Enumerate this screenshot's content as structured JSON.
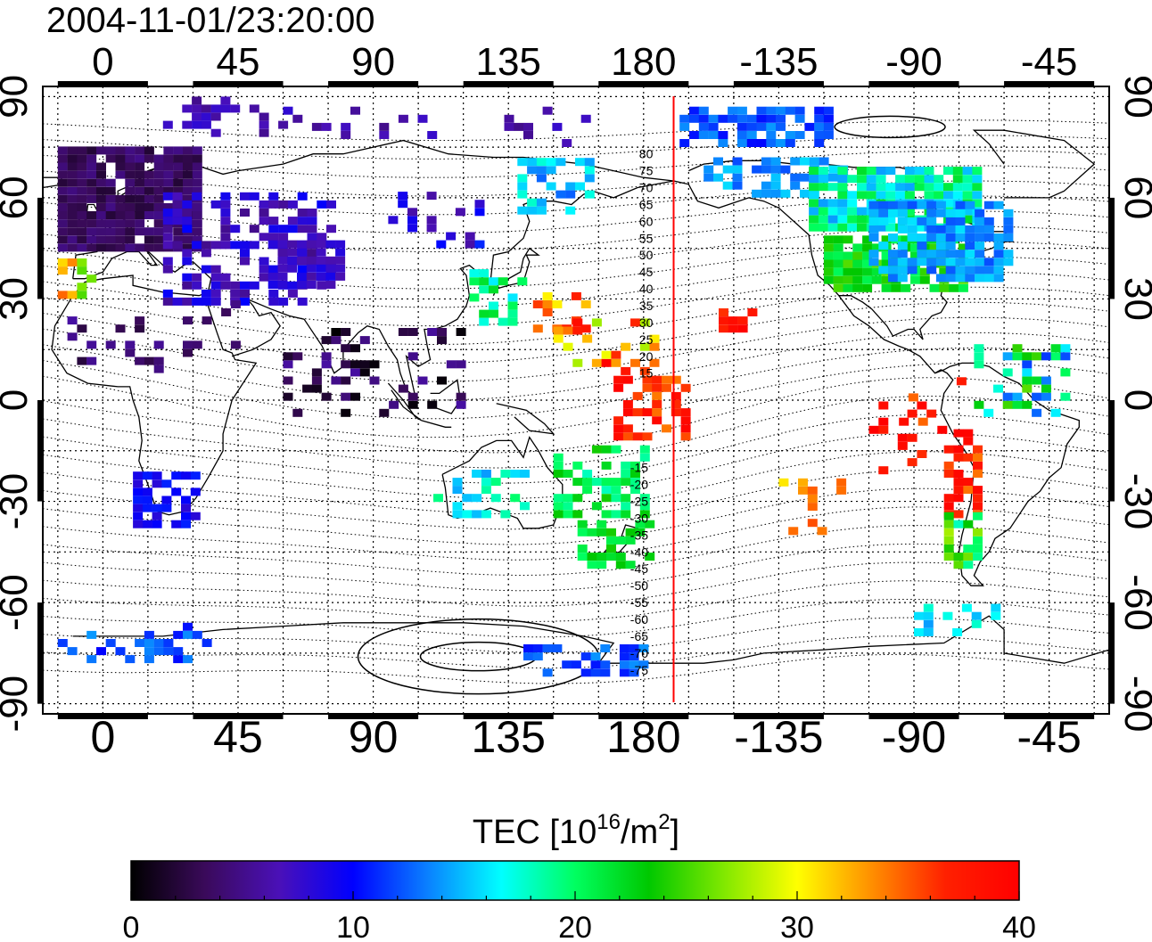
{
  "timestamp": "2004-11-01/23:20:00",
  "map": {
    "top_lon_labels": [
      "0",
      "45",
      "90",
      "135",
      "180",
      "-135",
      "-90",
      "-45"
    ],
    "bottom_lon_labels": [
      "0",
      "45",
      "90",
      "135",
      "180",
      "-135",
      "-90",
      "-45"
    ],
    "left_lat_labels": [
      "90",
      "60",
      "30",
      "0",
      "-30",
      "-60",
      "-90"
    ],
    "right_lat_labels": [
      "90",
      "60",
      "30",
      "0",
      "-30",
      "-60",
      "-90"
    ],
    "lon_values": [
      0,
      45,
      90,
      135,
      180,
      225,
      270,
      315
    ],
    "lat_values": [
      90,
      60,
      30,
      0,
      -30,
      -60,
      -90
    ],
    "lon_range": [
      -20,
      335
    ],
    "lat_range": [
      -93,
      93
    ],
    "gridline_step_deg": 15,
    "terminator_lon": 190,
    "terminator_color": "#ff0000"
  },
  "magnetic_latitude_labels": {
    "north": [
      "80",
      "75",
      "70",
      "65",
      "60",
      "55",
      "50",
      "45",
      "40",
      "35",
      "30",
      "25",
      "20",
      "15"
    ],
    "south": [
      "15",
      "20",
      "25",
      "30",
      "35",
      "40",
      "45",
      "50",
      "55",
      "60",
      "65",
      "70",
      "75"
    ]
  },
  "colorbar": {
    "title_prefix": "TEC  [10",
    "title_sup1": "16",
    "title_mid": "/m",
    "title_sup2": "2",
    "title_suffix": "]",
    "min": 0,
    "max": 40,
    "tick_labels": [
      "0",
      "10",
      "20",
      "30",
      "40"
    ],
    "tick_values": [
      0,
      10,
      20,
      30,
      40
    ],
    "colors": [
      "#000000",
      "#3a0a5a",
      "#4a10b8",
      "#0000ff",
      "#0a7fff",
      "#00ffff",
      "#00ff60",
      "#00c800",
      "#80e800",
      "#ffff00",
      "#ff9000",
      "#ff2000",
      "#ff0000"
    ]
  }
}
